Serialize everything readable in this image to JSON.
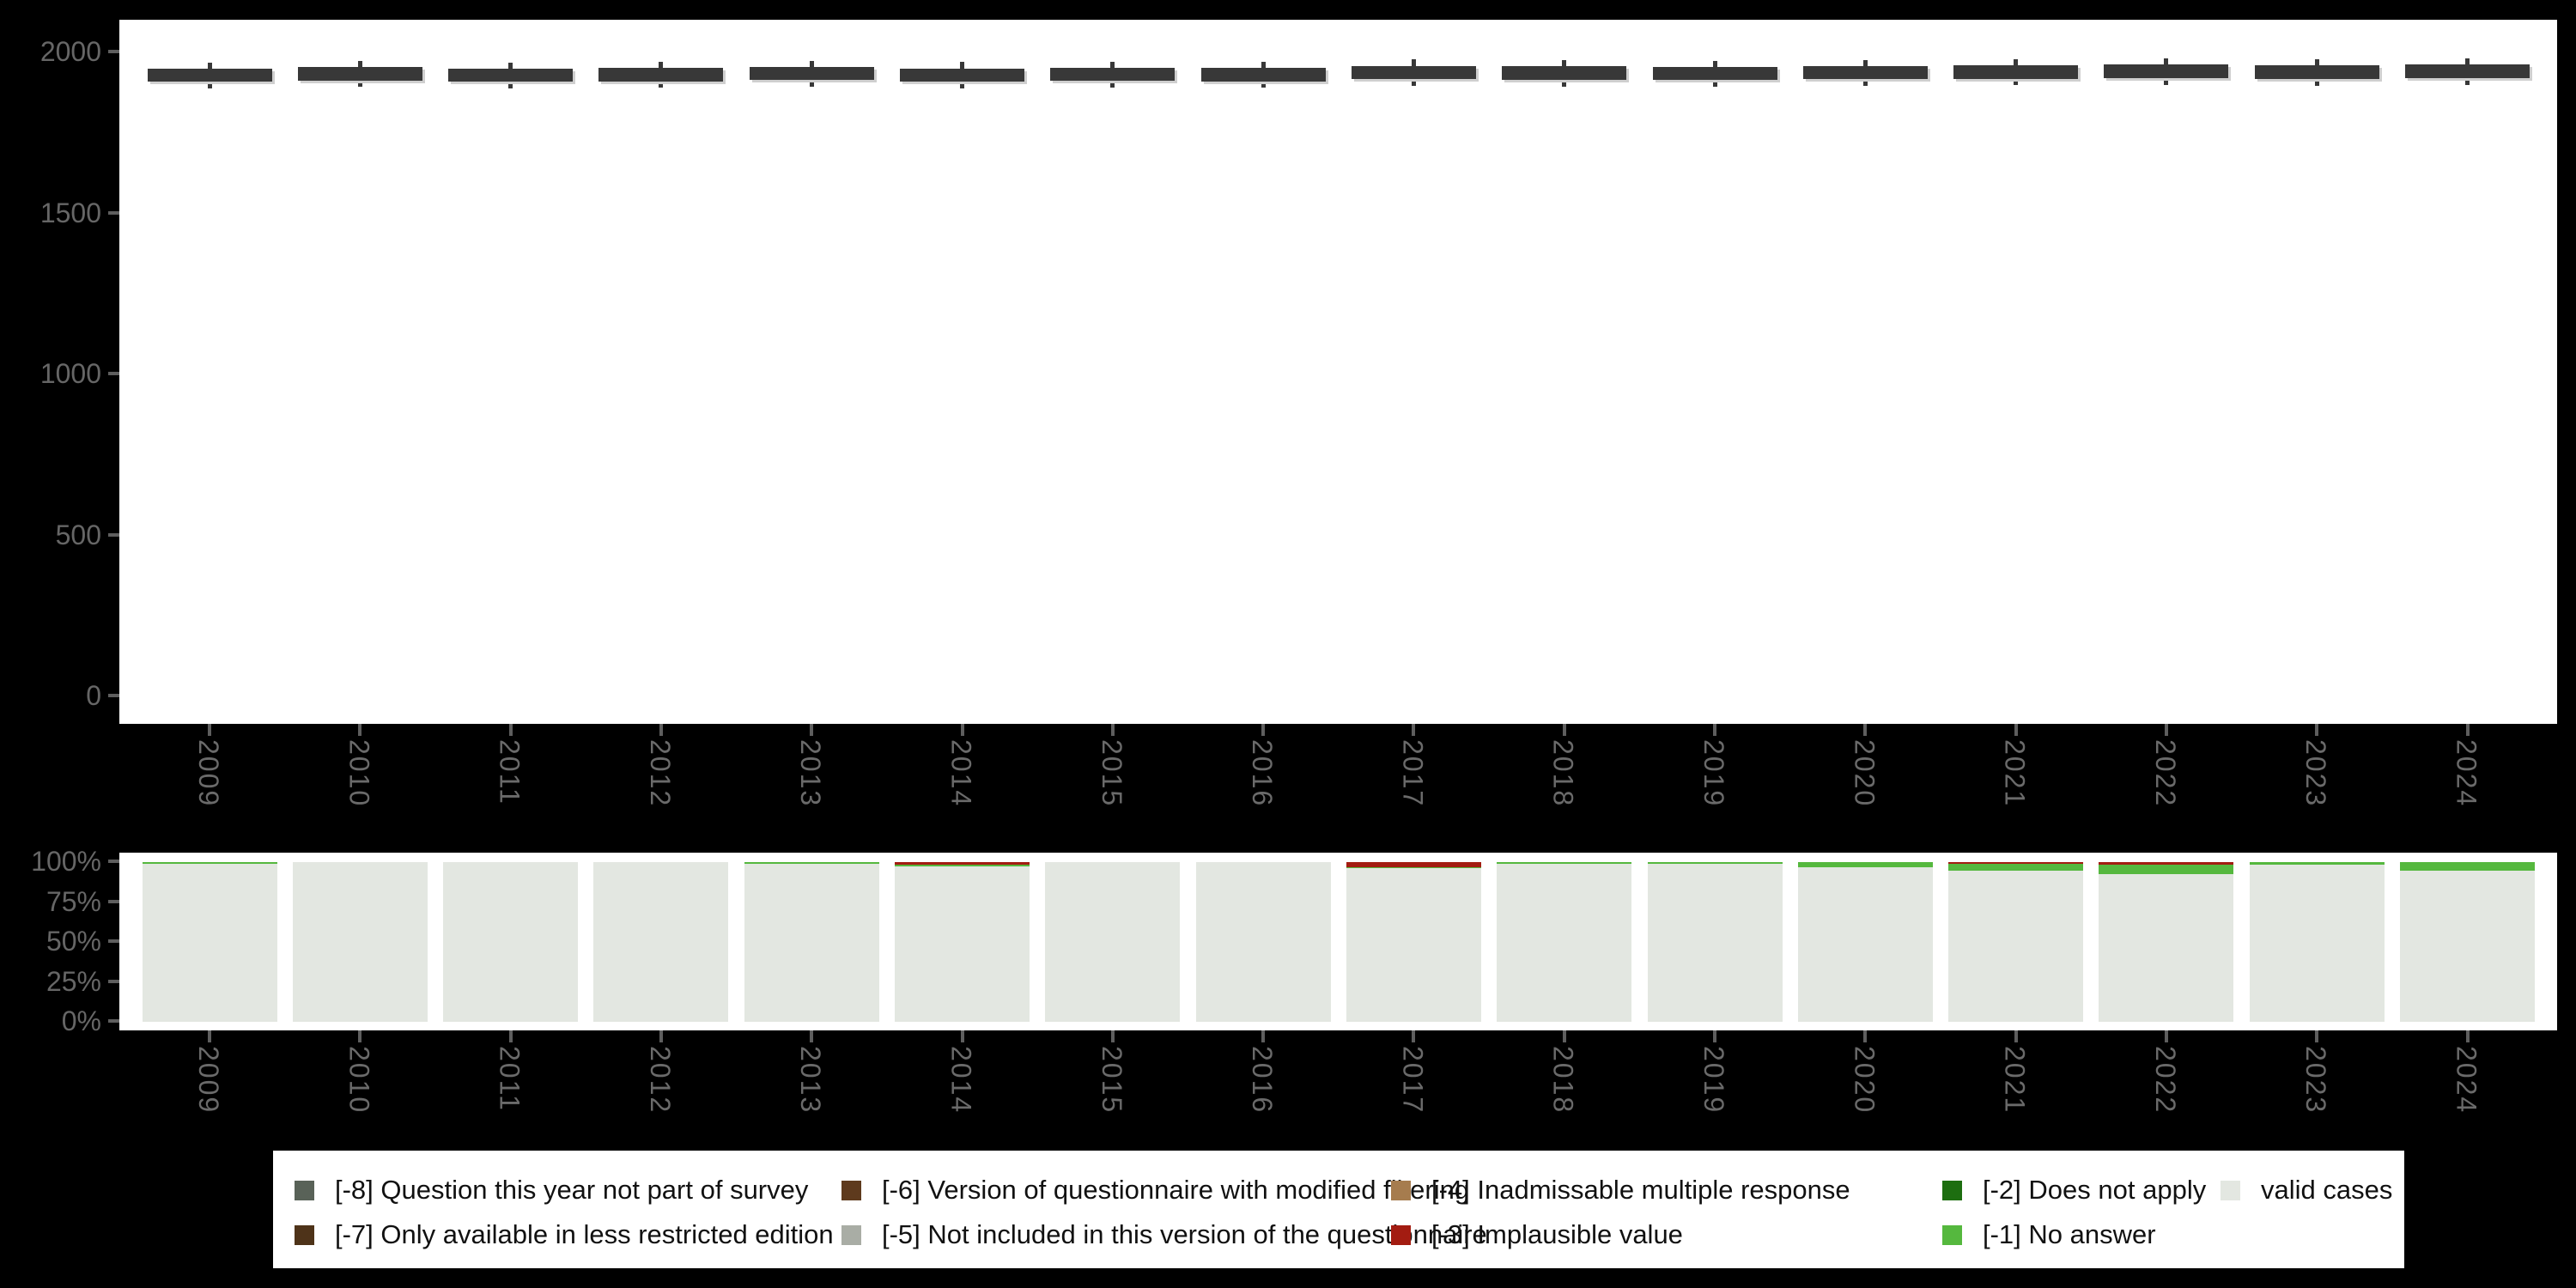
{
  "figure": {
    "background_color": "#000000",
    "panel_color": "#ffffff",
    "axis_text_color": "#666666",
    "tick_mark_color": "#5e5e5e",
    "years": [
      "2009",
      "2010",
      "2011",
      "2012",
      "2013",
      "2014",
      "2015",
      "2016",
      "2017",
      "2018",
      "2019",
      "2020",
      "2021",
      "2022",
      "2023",
      "2024"
    ]
  },
  "legend": {
    "items": [
      {
        "code": "-8",
        "label": "[-8] Question this year not part of survey",
        "color": "#596258",
        "row": 0,
        "col": 0
      },
      {
        "code": "-7",
        "label": "[-7] Only available in less restricted edition",
        "color": "#4e3319",
        "row": 1,
        "col": 0
      },
      {
        "code": "-6",
        "label": "[-6] Version of questionnaire with modified filtering",
        "color": "#5e3a1d",
        "row": 0,
        "col": 1
      },
      {
        "code": "-5",
        "label": "[-5] Not included in this version of the questionnaire",
        "color": "#a9ada5",
        "row": 1,
        "col": 1
      },
      {
        "code": "-4",
        "label": "[-4] Inadmissable multiple response",
        "color": "#a67c4e",
        "row": 0,
        "col": 2
      },
      {
        "code": "-3",
        "label": "[-3] Implausible value",
        "color": "#a31c11",
        "row": 1,
        "col": 2
      },
      {
        "code": "-2",
        "label": "[-2] Does not apply",
        "color": "#1d6e10",
        "row": 0,
        "col": 3
      },
      {
        "code": "-1",
        "label": "[-1] No answer",
        "color": "#55b83e",
        "row": 1,
        "col": 3
      },
      {
        "code": "valid",
        "label": "valid cases",
        "color": "#e3e7e1",
        "row": 0,
        "col": 4
      }
    ]
  },
  "chart_data": [
    {
      "type": "boxplot",
      "title": "",
      "xlabel": "",
      "ylabel": "",
      "categories": [
        "2009",
        "2010",
        "2011",
        "2012",
        "2013",
        "2014",
        "2015",
        "2016",
        "2017",
        "2018",
        "2019",
        "2020",
        "2021",
        "2022",
        "2023",
        "2024"
      ],
      "ylim": [
        0,
        2190
      ],
      "yticks": [
        0,
        500,
        1000,
        1500,
        2000
      ],
      "grid": false,
      "box_color": "#383838",
      "stats": [
        {
          "year": "2009",
          "whisker_low": 1886,
          "q1": 1907,
          "median": 1928,
          "q3": 1947,
          "whisker_high": 1966
        },
        {
          "year": "2010",
          "whisker_low": 1890,
          "q1": 1910,
          "median": 1932,
          "q3": 1952,
          "whisker_high": 1970
        },
        {
          "year": "2011",
          "whisker_low": 1885,
          "q1": 1906,
          "median": 1927,
          "q3": 1946,
          "whisker_high": 1965
        },
        {
          "year": "2012",
          "whisker_low": 1888,
          "q1": 1908,
          "median": 1930,
          "q3": 1949,
          "whisker_high": 1968
        },
        {
          "year": "2013",
          "whisker_low": 1890,
          "q1": 1911,
          "median": 1933,
          "q3": 1953,
          "whisker_high": 1972
        },
        {
          "year": "2014",
          "whisker_low": 1886,
          "q1": 1907,
          "median": 1929,
          "q3": 1948,
          "whisker_high": 1967
        },
        {
          "year": "2015",
          "whisker_low": 1889,
          "q1": 1910,
          "median": 1931,
          "q3": 1950,
          "whisker_high": 1969
        },
        {
          "year": "2016",
          "whisker_low": 1887,
          "q1": 1908,
          "median": 1930,
          "q3": 1949,
          "whisker_high": 1968
        },
        {
          "year": "2017",
          "whisker_low": 1893,
          "q1": 1914,
          "median": 1936,
          "q3": 1956,
          "whisker_high": 1975
        },
        {
          "year": "2018",
          "whisker_low": 1892,
          "q1": 1913,
          "median": 1934,
          "q3": 1954,
          "whisker_high": 1973
        },
        {
          "year": "2019",
          "whisker_low": 1891,
          "q1": 1912,
          "median": 1933,
          "q3": 1953,
          "whisker_high": 1972
        },
        {
          "year": "2020",
          "whisker_low": 1893,
          "q1": 1914,
          "median": 1935,
          "q3": 1955,
          "whisker_high": 1974
        },
        {
          "year": "2021",
          "whisker_low": 1895,
          "q1": 1916,
          "median": 1938,
          "q3": 1958,
          "whisker_high": 1977
        },
        {
          "year": "2022",
          "whisker_low": 1896,
          "q1": 1917,
          "median": 1939,
          "q3": 1959,
          "whisker_high": 1978
        },
        {
          "year": "2023",
          "whisker_low": 1894,
          "q1": 1915,
          "median": 1937,
          "q3": 1957,
          "whisker_high": 1976
        },
        {
          "year": "2024",
          "whisker_low": 1897,
          "q1": 1918,
          "median": 1940,
          "q3": 1960,
          "whisker_high": 1979
        }
      ]
    },
    {
      "type": "bar",
      "stacked": true,
      "title": "",
      "xlabel": "",
      "ylabel": "",
      "categories": [
        "2009",
        "2010",
        "2011",
        "2012",
        "2013",
        "2014",
        "2015",
        "2016",
        "2017",
        "2018",
        "2019",
        "2020",
        "2021",
        "2022",
        "2023",
        "2024"
      ],
      "ylim": [
        0,
        100
      ],
      "ytick_labels": [
        "0%",
        "25%",
        "50%",
        "75%",
        "100%"
      ],
      "grid": false,
      "legend_position": "bottom",
      "series": [
        {
          "name": "[-3] Implausible value",
          "color": "#a31c11",
          "values": [
            0,
            0,
            0,
            0,
            0,
            1.5,
            0,
            0,
            3.0,
            0,
            0,
            0,
            1.0,
            1.5,
            0,
            0
          ]
        },
        {
          "name": "[-1] No answer",
          "color": "#55b83e",
          "values": [
            1.0,
            0,
            0,
            0,
            1.0,
            1.0,
            0,
            0,
            1.0,
            1.0,
            1.0,
            3.0,
            4.5,
            6.0,
            1.5,
            5.5
          ]
        },
        {
          "name": "valid cases",
          "color": "#e3e7e1",
          "values": [
            99.0,
            100,
            100,
            100,
            99.0,
            97.5,
            100,
            100,
            96.0,
            99.0,
            99.0,
            97.0,
            94.5,
            92.5,
            98.5,
            94.5
          ]
        }
      ]
    }
  ]
}
